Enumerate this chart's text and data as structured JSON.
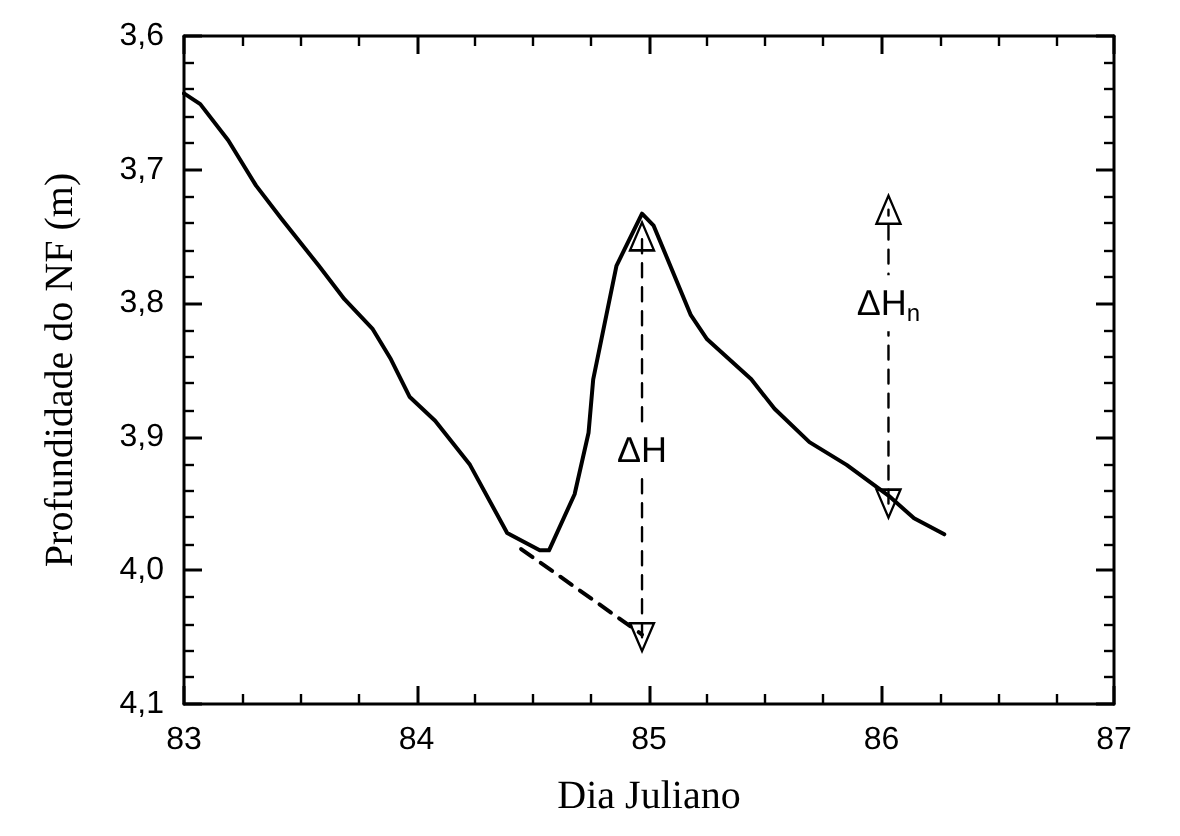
{
  "chart_data": {
    "type": "line",
    "xlabel": "Dia Juliano",
    "ylabel": "Profundidade do NF (m)",
    "xlim": [
      83,
      87
    ],
    "xticks": [
      83,
      84,
      85,
      86,
      87
    ],
    "ylim": [
      4.1,
      3.6
    ],
    "yticks": [
      {
        "value": 3.6,
        "label": "3,6"
      },
      {
        "value": 3.7,
        "label": "3,7"
      },
      {
        "value": 3.8,
        "label": "3,8"
      },
      {
        "value": 3.9,
        "label": "3,9"
      },
      {
        "value": 4.0,
        "label": "4,0"
      },
      {
        "value": 4.1,
        "label": "4,1"
      }
    ],
    "grid": false,
    "marker": "none",
    "line_style": "solid",
    "series": [
      {
        "color": "#000000",
        "x": [
          83,
          83.07,
          83.19,
          83.31,
          83.42,
          83.58,
          83.69,
          83.81,
          83.89,
          83.97,
          84.08,
          84.23,
          84.39,
          84.53,
          84.57,
          84.68,
          84.74,
          84.76,
          84.86,
          84.97,
          85.02,
          85.18,
          85.25,
          85.44,
          85.54,
          85.69,
          85.85,
          86.03,
          86.14,
          86.27
        ],
        "values": [
          3.643,
          3.651,
          3.678,
          3.712,
          3.737,
          3.772,
          3.797,
          3.819,
          3.842,
          3.87,
          3.888,
          3.921,
          3.972,
          3.985,
          3.985,
          3.943,
          3.897,
          3.857,
          3.772,
          3.733,
          3.742,
          3.809,
          3.827,
          3.857,
          3.879,
          3.904,
          3.921,
          3.944,
          3.961,
          3.973
        ]
      },
      {
        "color": "#000000",
        "line_style": "dashed",
        "x": [
          84.45,
          84.97
        ],
        "values": [
          3.984,
          4.048
        ]
      },
      {
        "color": "#000000",
        "line_style": "dashed",
        "marker": "triangle",
        "x": [
          84.97,
          84.97
        ],
        "values": [
          4.05,
          3.75
        ]
      },
      {
        "color": "#000000",
        "line_style": "dashed",
        "marker": "triangle",
        "x": [
          86.03,
          86.03
        ],
        "values": [
          3.95,
          3.73
        ]
      }
    ],
    "annotations": [
      {
        "text": "ΔH",
        "x": 84.97,
        "y": 3.91
      },
      {
        "text": "ΔH$_{n}$",
        "x": 86.03,
        "y": 3.8
      }
    ]
  }
}
